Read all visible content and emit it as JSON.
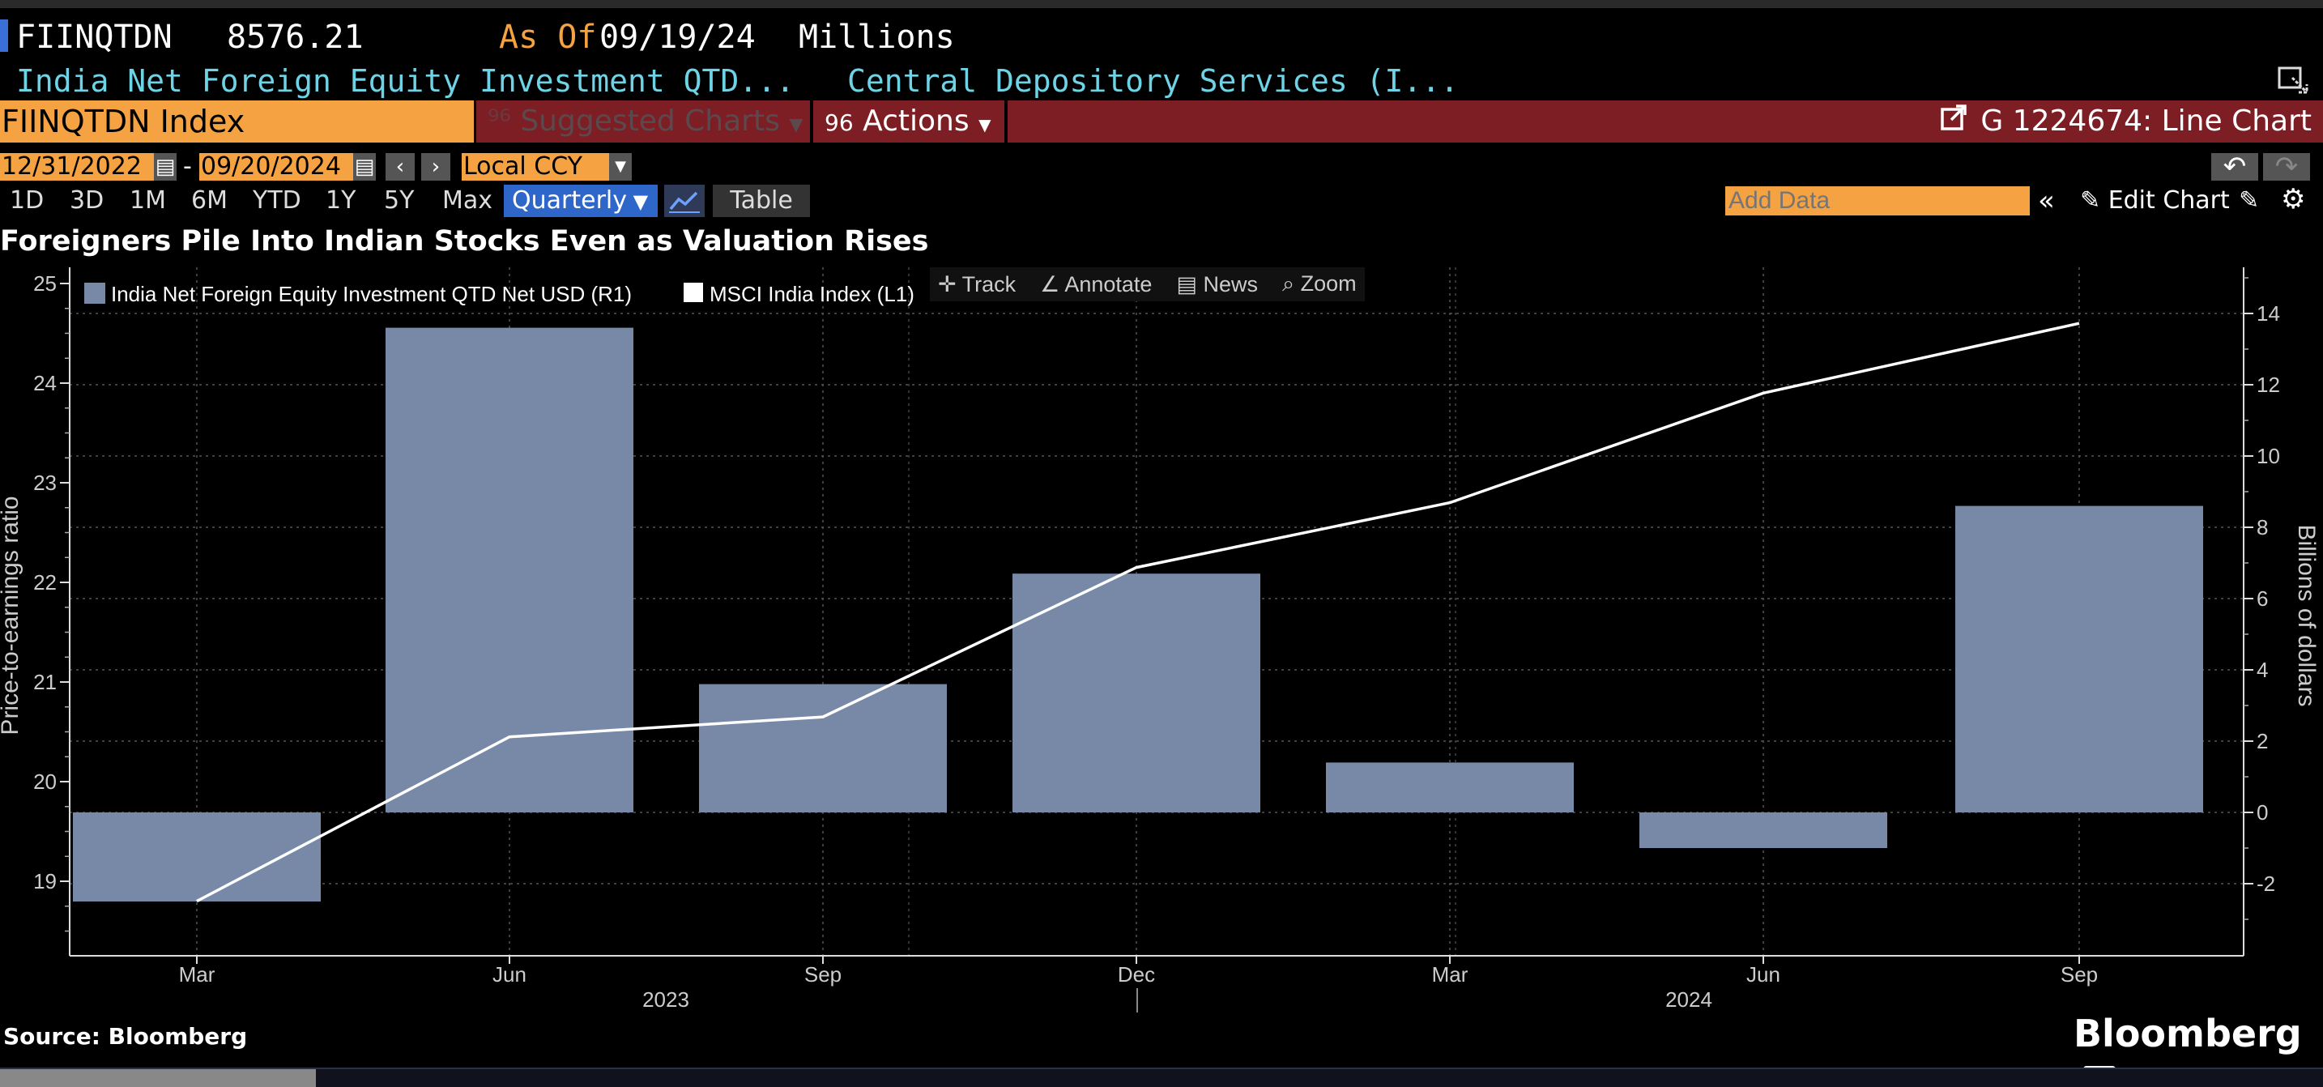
{
  "header": {
    "ticker": "FIINQTDN",
    "value": "8576.21",
    "as_of_label": "As Of",
    "as_of_date": "09/19/24",
    "units": "Millions",
    "description": "India Net Foreign Equity Investment QTD...",
    "source_name": "Central Depository Services (I..."
  },
  "menubar": {
    "security": "FIINQTDN Index",
    "suggested": "Suggested Charts",
    "actions": "Actions",
    "chart_id": "G 1224674: Line Chart"
  },
  "controls": {
    "start_date": "12/31/2022",
    "end_date": "09/20/2024",
    "currency": "Local CCY",
    "periods": [
      "1D",
      "3D",
      "1M",
      "6M",
      "YTD",
      "1Y",
      "5Y",
      "Max"
    ],
    "frequency": "Quarterly",
    "table": "Table",
    "add_data_placeholder": "Add Data",
    "edit_chart": "Edit Chart"
  },
  "chart_toolbar": {
    "track": "Track",
    "annotate": "Annotate",
    "news": "News",
    "zoom": "Zoom"
  },
  "footer": {
    "source": "Source: Bloomberg",
    "logo": "Bloomberg"
  },
  "colors": {
    "bar": "#7889a8",
    "line": "#ffffff",
    "orange": "#f5a243",
    "maroon": "#7d1d24",
    "cyan": "#6fd3e6"
  },
  "chart_data": {
    "type": "bar+line",
    "title": "Foreigners Pile Into Indian Stocks Even as Valuation Rises",
    "categories": [
      "Mar",
      "Jun",
      "Sep",
      "Dec",
      "Mar",
      "Jun",
      "Sep"
    ],
    "year_labels": [
      "2023",
      "2024"
    ],
    "series": [
      {
        "name": "India Net Foreign Equity Investment QTD Net USD  (R1)",
        "type": "bar",
        "axis": "right",
        "values": [
          -2.5,
          13.6,
          3.6,
          6.7,
          1.4,
          -1.0,
          8.6
        ]
      },
      {
        "name": "MSCI India Index  (L1)",
        "type": "line",
        "axis": "left",
        "values": [
          18.8,
          20.45,
          20.65,
          22.15,
          22.8,
          23.9,
          24.6
        ]
      }
    ],
    "ylabel_left": "Price-to-earnings ratio",
    "ylabel_right": "Billions of dollars",
    "ylim_left": [
      18.27,
      25.15
    ],
    "ylim_right": [
      -4,
      15
    ],
    "yticks_left": [
      19,
      20,
      21,
      22,
      23,
      24,
      25
    ],
    "yticks_right": [
      -2,
      0,
      2,
      4,
      6,
      8,
      10,
      12,
      14
    ],
    "legend_position": "top-left",
    "grid": true
  }
}
